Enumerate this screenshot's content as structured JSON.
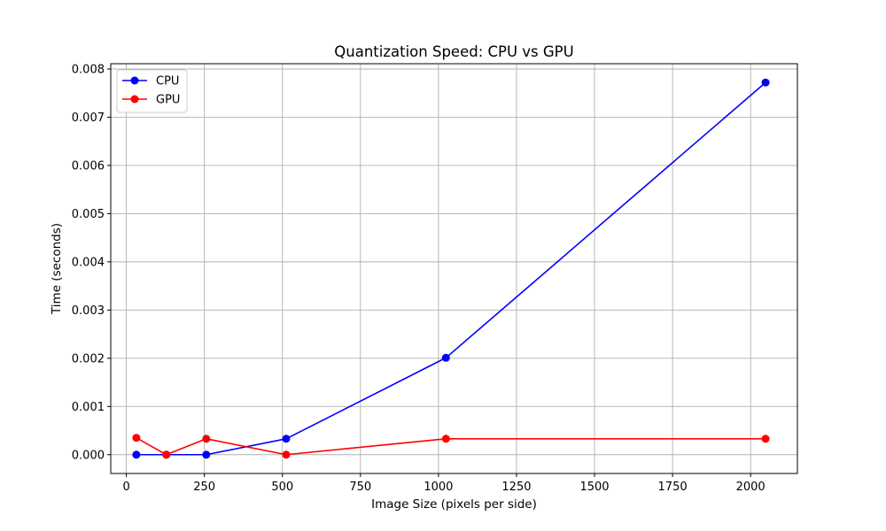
{
  "chart_data": {
    "type": "line",
    "title": "Quantization Speed: CPU vs GPU",
    "xlabel": "Image Size (pixels per side)",
    "ylabel": "Time (seconds)",
    "xlim": [
      -50,
      2150
    ],
    "ylim": [
      -0.00039,
      0.00811
    ],
    "xticks": [
      0,
      250,
      500,
      750,
      1000,
      1250,
      1500,
      1750,
      2000
    ],
    "xtick_labels": [
      "0",
      "250",
      "500",
      "750",
      "1000",
      "1250",
      "1500",
      "1750",
      "2000"
    ],
    "yticks": [
      0,
      0.001,
      0.002,
      0.003,
      0.004,
      0.005,
      0.006,
      0.007,
      0.008
    ],
    "ytick_labels": [
      "0.000",
      "0.001",
      "0.002",
      "0.003",
      "0.004",
      "0.005",
      "0.006",
      "0.007",
      "0.008"
    ],
    "grid": true,
    "legend": "upper-left",
    "x": [
      32,
      128,
      256,
      512,
      1024,
      2048
    ],
    "series": [
      {
        "name": "CPU",
        "color": "#0000ff",
        "marker": "circle",
        "values": [
          0.0,
          0.0,
          0.0,
          0.00033,
          0.00201,
          0.00772
        ]
      },
      {
        "name": "GPU",
        "color": "#ff0000",
        "marker": "circle",
        "values": [
          0.00035,
          0.0,
          0.00033,
          0.0,
          0.00033,
          0.00033
        ]
      }
    ]
  }
}
